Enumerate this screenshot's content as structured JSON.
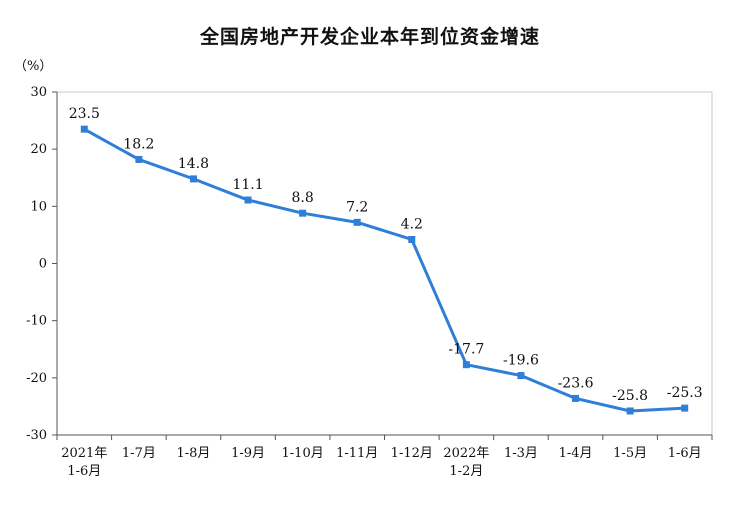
{
  "chart_data": {
    "type": "line",
    "title": "全国房地产开发企业本年到位资金增速",
    "unit": "（%）",
    "categories": [
      [
        "2021年",
        "1-6月"
      ],
      [
        "1-7月"
      ],
      [
        "1-8月"
      ],
      [
        "1-9月"
      ],
      [
        "1-10月"
      ],
      [
        "1-11月"
      ],
      [
        "1-12月"
      ],
      [
        "2022年",
        "1-2月"
      ],
      [
        "1-3月"
      ],
      [
        "1-4月"
      ],
      [
        "1-5月"
      ],
      [
        "1-6月"
      ]
    ],
    "values": [
      23.5,
      18.2,
      14.8,
      11.1,
      8.8,
      7.2,
      4.2,
      -17.7,
      -19.6,
      -23.6,
      -25.8,
      -25.3
    ],
    "data_labels": [
      "23.5",
      "18.2",
      "14.8",
      "11.1",
      "8.8",
      "7.2",
      "4.2",
      "-17.7",
      "-19.6",
      "-23.6",
      "-25.8",
      "-25.3"
    ],
    "yticks": [
      "30",
      "20",
      "10",
      "0",
      "-10",
      "-20",
      "-30"
    ],
    "ytick_values": [
      30,
      20,
      10,
      0,
      -10,
      -20,
      -30
    ],
    "ylim": [
      -30,
      30
    ],
    "grid": false,
    "legend": "none",
    "line_color": "#2f7ed8"
  }
}
